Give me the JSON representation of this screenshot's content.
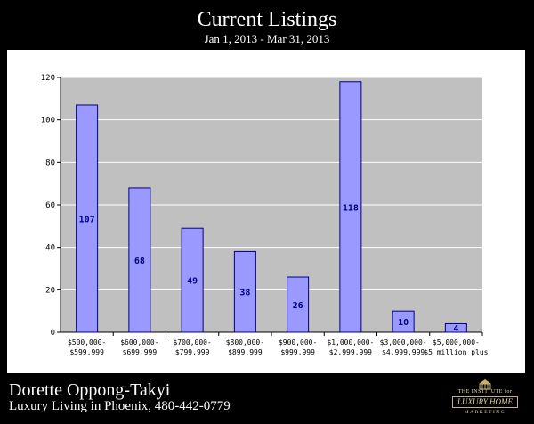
{
  "header": {
    "title": "Current Listings",
    "subtitle": "Jan 1, 2013 - Mar 31, 2013"
  },
  "footer": {
    "agent_name": "Dorette Oppong-Takyi",
    "tagline": "Luxury Living in Phoenix, 480-442-0779",
    "logo": {
      "icon": "house-pillar-icon",
      "line1": "THE INSTITUTE for",
      "line2": "LUXURY HOME",
      "line3": "MARKETING"
    }
  },
  "colors": {
    "page_background": "#000000",
    "panel_background": "#ffffff",
    "plot_background": "#c0c0c0",
    "bar_fill": "#9999ff",
    "bar_stroke": "#000080",
    "data_label": "#000080",
    "gridline": "#ffffff"
  },
  "chart_data": {
    "type": "bar",
    "categories": [
      [
        "$500,000-",
        "$599,999"
      ],
      [
        "$600,000-",
        "$699,999"
      ],
      [
        "$700,000-",
        "$799,999"
      ],
      [
        "$800,000-",
        "$899,999"
      ],
      [
        "$900,000-",
        "$999,999"
      ],
      [
        "$1,000,000-",
        "$2,999,999"
      ],
      [
        "$3,000,000-",
        "$4,999,999"
      ],
      [
        "$5,000,000-",
        "$5 million plus"
      ]
    ],
    "values": [
      107,
      68,
      49,
      38,
      26,
      118,
      10,
      4
    ],
    "ylim": [
      0,
      120
    ],
    "yticks": [
      0,
      20,
      40,
      60,
      80,
      100,
      120
    ],
    "grid": true,
    "legend": "none"
  }
}
